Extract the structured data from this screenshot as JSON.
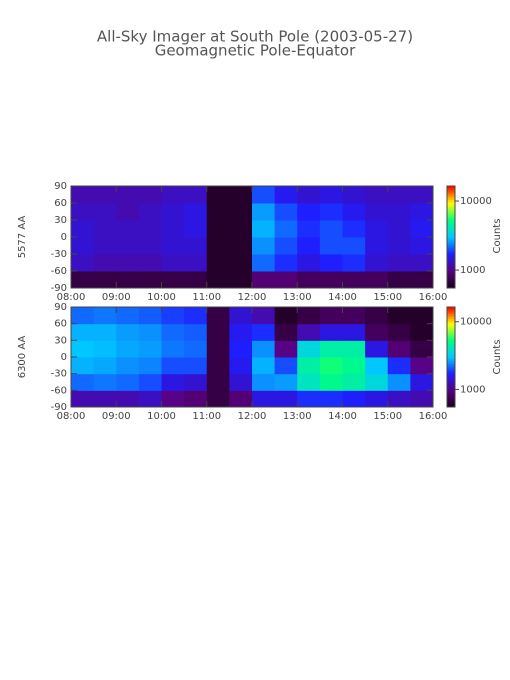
{
  "header": {
    "title": "All-Sky Imager at South Pole (2003-05-27)",
    "subtitle": "Geomagnetic Pole-Equator"
  },
  "chart_data": [
    {
      "type": "heatmap",
      "y_label": "5577 AA",
      "xbins": [
        8,
        8.5,
        9,
        9.5,
        10,
        10.5,
        11,
        11.5,
        12,
        12.5,
        13,
        13.5,
        14,
        14.5,
        15,
        15.5,
        16
      ],
      "ybins": [
        -90,
        -60,
        -30,
        0,
        30,
        60,
        90
      ],
      "values": [
        [
          700,
          700,
          700,
          700,
          700,
          700,
          600,
          600,
          900,
          900,
          800,
          800,
          800,
          800,
          700,
          700
        ],
        [
          1300,
          1200,
          1200,
          1200,
          1300,
          1300,
          600,
          600,
          2200,
          1800,
          1500,
          1700,
          1800,
          1400,
          1300,
          1300
        ],
        [
          1400,
          1300,
          1300,
          1300,
          1400,
          1400,
          600,
          600,
          2500,
          2000,
          1700,
          2000,
          2000,
          1500,
          1400,
          1500
        ],
        [
          1400,
          1300,
          1300,
          1300,
          1400,
          1500,
          600,
          600,
          2800,
          2200,
          1800,
          2000,
          1800,
          1500,
          1400,
          1600
        ],
        [
          1300,
          1300,
          1200,
          1300,
          1400,
          1500,
          600,
          600,
          2600,
          2000,
          1700,
          1800,
          1600,
          1400,
          1400,
          1500
        ],
        [
          1200,
          1200,
          1200,
          1200,
          1300,
          1300,
          600,
          600,
          2000,
          1600,
          1400,
          1500,
          1400,
          1300,
          1300,
          1300
        ]
      ],
      "xlim": [
        8,
        16
      ],
      "xticks": [
        {
          "value": 8,
          "label": "08:00"
        },
        {
          "value": 9,
          "label": "09:00"
        },
        {
          "value": 10,
          "label": "10:00"
        },
        {
          "value": 11,
          "label": "11:00"
        },
        {
          "value": 12,
          "label": "12:00"
        },
        {
          "value": 13,
          "label": "13:00"
        },
        {
          "value": 14,
          "label": "14:00"
        },
        {
          "value": 15,
          "label": "15:00"
        },
        {
          "value": 16,
          "label": "16:00"
        }
      ],
      "ylim": [
        -90,
        90
      ],
      "yticks": [
        -90,
        -60,
        -30,
        0,
        30,
        60,
        90
      ],
      "colorbar": {
        "label": "Counts",
        "scale": "log",
        "lim": [
          550,
          16500
        ],
        "ticks": [
          1000,
          10000
        ]
      },
      "colormap": [
        "#1a001a",
        "#5a0080",
        "#1e1eff",
        "#00c8ff",
        "#00ff80",
        "#ffff00",
        "#ff0000"
      ]
    },
    {
      "type": "heatmap",
      "y_label": "6300 AA",
      "xbins": [
        8,
        8.5,
        9,
        9.5,
        10,
        10.5,
        11,
        11.5,
        12,
        12.5,
        13,
        13.5,
        14,
        14.5,
        15,
        15.5,
        16
      ],
      "ybins": [
        -90,
        -60,
        -30,
        0,
        30,
        60,
        90
      ],
      "values": [
        [
          1200,
          1200,
          1200,
          1300,
          1000,
          900,
          700,
          900,
          1500,
          1500,
          1800,
          1800,
          1700,
          1500,
          1300,
          1200
        ],
        [
          2200,
          2300,
          2200,
          2000,
          1500,
          1400,
          700,
          1400,
          2500,
          2600,
          4000,
          5000,
          4500,
          3500,
          2500,
          1500
        ],
        [
          2800,
          2700,
          2500,
          2400,
          2000,
          2000,
          700,
          1600,
          2800,
          2000,
          4500,
          5500,
          5000,
          3000,
          1800,
          1000
        ],
        [
          3000,
          2900,
          2700,
          2600,
          2300,
          2200,
          700,
          1700,
          2500,
          1000,
          3500,
          4500,
          4500,
          1500,
          900,
          700
        ],
        [
          2800,
          2800,
          2600,
          2500,
          2200,
          2100,
          700,
          1600,
          1800,
          700,
          1200,
          1500,
          1500,
          800,
          700,
          600
        ],
        [
          2200,
          2300,
          2200,
          2100,
          1900,
          1800,
          700,
          1400,
          1200,
          600,
          700,
          800,
          800,
          700,
          600,
          600
        ]
      ],
      "xlim": [
        8,
        16
      ],
      "xticks": [
        {
          "value": 8,
          "label": "08:00"
        },
        {
          "value": 9,
          "label": "09:00"
        },
        {
          "value": 10,
          "label": "10:00"
        },
        {
          "value": 11,
          "label": "11:00"
        },
        {
          "value": 12,
          "label": "12:00"
        },
        {
          "value": 13,
          "label": "13:00"
        },
        {
          "value": 14,
          "label": "14:00"
        },
        {
          "value": 15,
          "label": "15:00"
        },
        {
          "value": 16,
          "label": "16:00"
        }
      ],
      "ylim": [
        -90,
        90
      ],
      "yticks": [
        -90,
        -60,
        -30,
        0,
        30,
        60,
        90
      ],
      "colorbar": {
        "label": "Counts",
        "scale": "log",
        "lim": [
          550,
          16500
        ],
        "ticks": [
          1000,
          10000
        ]
      },
      "colormap": [
        "#1a001a",
        "#5a0080",
        "#1e1eff",
        "#00c8ff",
        "#00ff80",
        "#ffff00",
        "#ff0000"
      ]
    }
  ]
}
